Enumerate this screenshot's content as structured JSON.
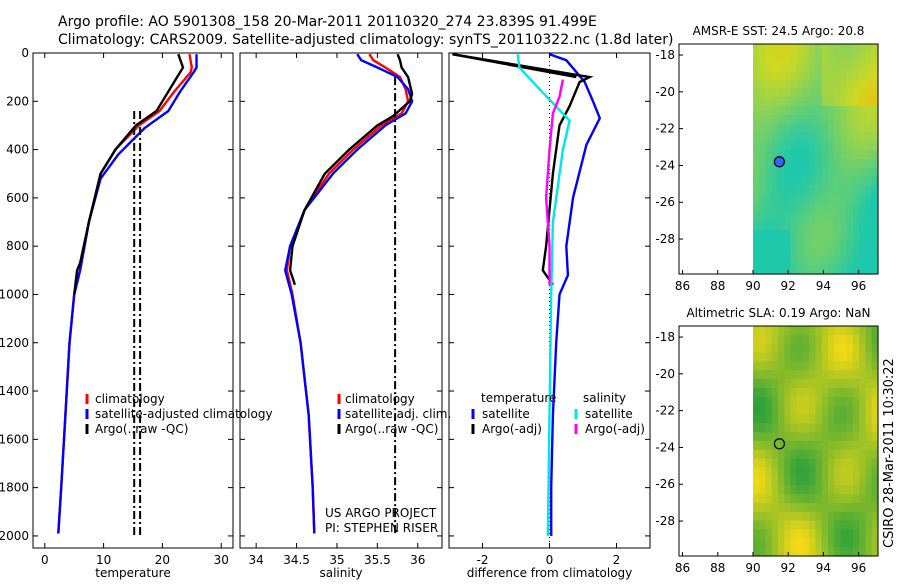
{
  "header": {
    "line1": "Argo profile: AO 5901308_158 20-Mar-2011 20110320_274 23.839S 91.499E",
    "line2": "Climatology: CARS2009. Satellite-adjusted climatology: synTS_20110322.nc (1.8d later)"
  },
  "side_label": "CSIRO 28-Mar-2011 10:30:22",
  "colors": {
    "clim": "#ff0000",
    "sat": "#0000ff",
    "argo": "#000000",
    "cyan": "#00e6e6",
    "magenta": "#ff00ff"
  },
  "chart_data": [
    {
      "type": "line",
      "name": "temperature",
      "xlabel": "temperature",
      "xlim": [
        -2,
        32
      ],
      "ylim": [
        2050,
        0
      ],
      "xticks": [
        0,
        10,
        20,
        30
      ],
      "yticks": [
        0,
        200,
        400,
        600,
        800,
        1000,
        1200,
        1400,
        1600,
        1800,
        2000
      ],
      "legend": {
        "position": "lower-right",
        "items": [
          "climatology",
          "satellite-adjusted climatology",
          "Argo(..raw -QC)"
        ]
      },
      "series": [
        {
          "name": "climatology",
          "color": "clim",
          "points": [
            [
              24.6,
              5
            ],
            [
              25,
              60
            ],
            [
              24.8,
              80
            ],
            [
              22,
              160
            ],
            [
              19.5,
              240
            ],
            [
              16,
              300
            ],
            [
              12,
              400
            ],
            [
              9.5,
              500
            ],
            [
              7.5,
              700
            ],
            [
              6,
              900
            ],
            [
              5,
              1000
            ],
            [
              4.2,
              1200
            ],
            [
              3.5,
              1500
            ],
            [
              2.8,
              1800
            ],
            [
              2.3,
              1990
            ]
          ]
        },
        {
          "name": "satellite-adjusted climatology",
          "color": "sat",
          "points": [
            [
              25.8,
              5
            ],
            [
              25.8,
              60
            ],
            [
              25.3,
              80
            ],
            [
              23,
              160
            ],
            [
              21,
              240
            ],
            [
              17,
              310
            ],
            [
              12.5,
              420
            ],
            [
              9.5,
              520
            ],
            [
              7.5,
              700
            ],
            [
              6,
              900
            ],
            [
              5,
              1000
            ],
            [
              4.2,
              1200
            ],
            [
              3.5,
              1500
            ],
            [
              2.8,
              1800
            ],
            [
              2.3,
              1990
            ]
          ]
        },
        {
          "name": "Argo",
          "color": "argo",
          "points": [
            [
              22.7,
              5
            ],
            [
              23.5,
              60
            ],
            [
              23,
              80
            ],
            [
              21,
              160
            ],
            [
              19,
              240
            ],
            [
              15.5,
              300
            ],
            [
              12,
              400
            ],
            [
              9.5,
              500
            ],
            [
              7.5,
              700
            ],
            [
              6,
              870
            ],
            [
              5.5,
              900
            ],
            [
              5,
              1000
            ]
          ]
        },
        {
          "name": "Argo QC",
          "color": "argo",
          "dash": true,
          "points": [
            [
              15.2,
              240
            ],
            [
              15.2,
              2000
            ]
          ]
        },
        {
          "name": "Argo QC 2",
          "color": "argo",
          "dash": true,
          "points": [
            [
              16.2,
              240
            ],
            [
              16.2,
              2000
            ]
          ]
        }
      ]
    },
    {
      "type": "line",
      "name": "salinity",
      "xlabel": "salinity",
      "xlim": [
        33.8,
        36.3
      ],
      "ylim": [
        2050,
        0
      ],
      "xticks": [
        34,
        34.5,
        35,
        35.5,
        36
      ],
      "legend": {
        "position": "lower-right",
        "items": [
          "climatology",
          "satellite adj. clim.",
          "Argo(..raw -QC)"
        ]
      },
      "annotations": [
        "US ARGO PROJECT",
        "PI: STEPHEN RISER"
      ],
      "series": [
        {
          "name": "climatology",
          "color": "clim",
          "points": [
            [
              35.4,
              5
            ],
            [
              35.45,
              30
            ],
            [
              35.6,
              60
            ],
            [
              35.78,
              100
            ],
            [
              35.85,
              150
            ],
            [
              35.88,
              200
            ],
            [
              35.8,
              250
            ],
            [
              35.55,
              300
            ],
            [
              35.2,
              400
            ],
            [
              34.9,
              500
            ],
            [
              34.6,
              650
            ],
            [
              34.42,
              800
            ],
            [
              34.38,
              900
            ],
            [
              34.45,
              1000
            ],
            [
              34.55,
              1200
            ],
            [
              34.65,
              1500
            ],
            [
              34.7,
              1800
            ],
            [
              34.72,
              1990
            ]
          ]
        },
        {
          "name": "satellite-adjusted",
          "color": "sat",
          "points": [
            [
              35.25,
              5
            ],
            [
              35.3,
              30
            ],
            [
              35.5,
              60
            ],
            [
              35.75,
              100
            ],
            [
              35.88,
              150
            ],
            [
              35.93,
              200
            ],
            [
              35.85,
              250
            ],
            [
              35.6,
              300
            ],
            [
              35.25,
              400
            ],
            [
              34.95,
              500
            ],
            [
              34.6,
              650
            ],
            [
              34.42,
              800
            ],
            [
              34.36,
              900
            ],
            [
              34.44,
              1000
            ],
            [
              34.55,
              1200
            ],
            [
              34.65,
              1500
            ],
            [
              34.7,
              1800
            ],
            [
              34.72,
              1990
            ]
          ]
        },
        {
          "name": "Argo",
          "color": "argo",
          "points": [
            [
              35.75,
              5
            ],
            [
              35.78,
              30
            ],
            [
              35.8,
              60
            ],
            [
              35.88,
              100
            ],
            [
              35.93,
              170
            ],
            [
              35.9,
              200
            ],
            [
              35.7,
              260
            ],
            [
              35.5,
              300
            ],
            [
              35.15,
              400
            ],
            [
              34.85,
              500
            ],
            [
              34.6,
              650
            ],
            [
              34.45,
              800
            ],
            [
              34.42,
              900
            ],
            [
              34.48,
              960
            ]
          ]
        },
        {
          "name": "Argo QC",
          "color": "argo",
          "dash": true,
          "points": [
            [
              35.72,
              100
            ],
            [
              35.72,
              2000
            ]
          ]
        }
      ]
    },
    {
      "type": "line",
      "name": "difference",
      "xlabel": "difference from climatology",
      "xlim": [
        -3,
        3
      ],
      "ylim": [
        2050,
        0
      ],
      "xticks": [
        -2,
        0,
        2
      ],
      "legend": {
        "position": "lower-center",
        "headers": [
          "temperature",
          "salinity"
        ],
        "items": [
          "satellite",
          "Argo(-adj)",
          "satellite",
          "Argo(-adj)"
        ]
      },
      "series": [
        {
          "name": "temp satellite",
          "color": "sat",
          "points": [
            [
              0,
              5
            ],
            [
              0.5,
              30
            ],
            [
              1.05,
              120
            ],
            [
              1.3,
              200
            ],
            [
              1.5,
              270
            ],
            [
              1.1,
              380
            ],
            [
              0.7,
              600
            ],
            [
              0.5,
              800
            ],
            [
              0.55,
              920
            ],
            [
              0.3,
              1000
            ],
            [
              0.2,
              1200
            ],
            [
              0.1,
              1500
            ],
            [
              0.05,
              1800
            ],
            [
              0.05,
              2000
            ]
          ]
        },
        {
          "name": "temp Argo",
          "color": "argo",
          "points": [
            [
              -2.9,
              5
            ],
            [
              1.2,
              100
            ],
            [
              0.9,
              120
            ],
            [
              0.6,
              220
            ],
            [
              0.3,
              300
            ],
            [
              0.1,
              500
            ],
            [
              -0.1,
              800
            ],
            [
              -0.2,
              900
            ],
            [
              0.1,
              960
            ]
          ]
        },
        {
          "name": "temp Argo jump",
          "color": "argo",
          "points": [
            [
              -2.9,
              5
            ],
            [
              0.8,
              100
            ]
          ]
        },
        {
          "name": "sal satellite",
          "color": "cyan",
          "points": [
            [
              -0.95,
              5
            ],
            [
              -0.9,
              60
            ],
            [
              -0.3,
              150
            ],
            [
              0.6,
              280
            ],
            [
              0.4,
              400
            ],
            [
              0.1,
              700
            ],
            [
              0.05,
              1000
            ],
            [
              0.0,
              1500
            ],
            [
              -0.05,
              2000
            ]
          ]
        },
        {
          "name": "sal Argo",
          "color": "magenta",
          "points": [
            [
              0.4,
              110
            ],
            [
              0.3,
              180
            ],
            [
              0.1,
              250
            ],
            [
              0.0,
              400
            ],
            [
              -0.1,
              600
            ],
            [
              0,
              800
            ],
            [
              0,
              960
            ]
          ]
        }
      ]
    }
  ],
  "maps": {
    "sst": {
      "title": "AMSR-E SST: 24.5 Argo: 20.8",
      "xticks": [
        "86",
        "88",
        "90",
        "92",
        "94",
        "96"
      ],
      "yticks": [
        "-18",
        "-20",
        "-22",
        "-24",
        "-26",
        "-28"
      ],
      "marker": {
        "lon": 91.5,
        "lat": -23.8
      }
    },
    "sla": {
      "title": "Altimetric SLA: 0.19 Argo: NaN",
      "xticks": [
        "86",
        "88",
        "90",
        "92",
        "94",
        "96"
      ],
      "yticks": [
        "-18",
        "-20",
        "-22",
        "-24",
        "-26",
        "-28"
      ],
      "marker": {
        "lon": 91.5,
        "lat": -23.8
      }
    }
  }
}
